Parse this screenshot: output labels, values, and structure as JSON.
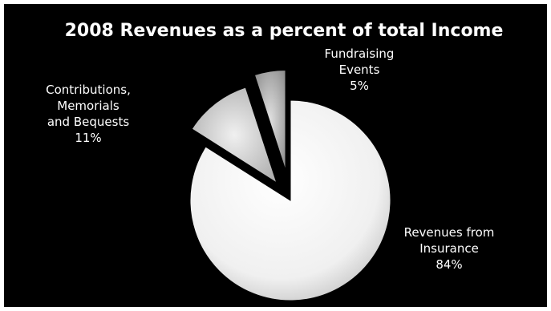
{
  "chart_data": {
    "type": "pie",
    "title": "2008 Revenues as a percent of total  Income",
    "slices": [
      {
        "label_lines": [
          "Revenues from",
          "Insurance",
          "84%"
        ],
        "value": 84,
        "color": "#f2f2f2"
      },
      {
        "label_lines": [
          "Contributions,",
          "Memorials",
          "and Bequests",
          "11%"
        ],
        "value": 11,
        "color": "#d9d9d9"
      },
      {
        "label_lines": [
          "Fundraising",
          "Events",
          "5%"
        ],
        "value": 5,
        "color": "#bfbfbf"
      }
    ],
    "legend": "none",
    "background": "#000000"
  }
}
